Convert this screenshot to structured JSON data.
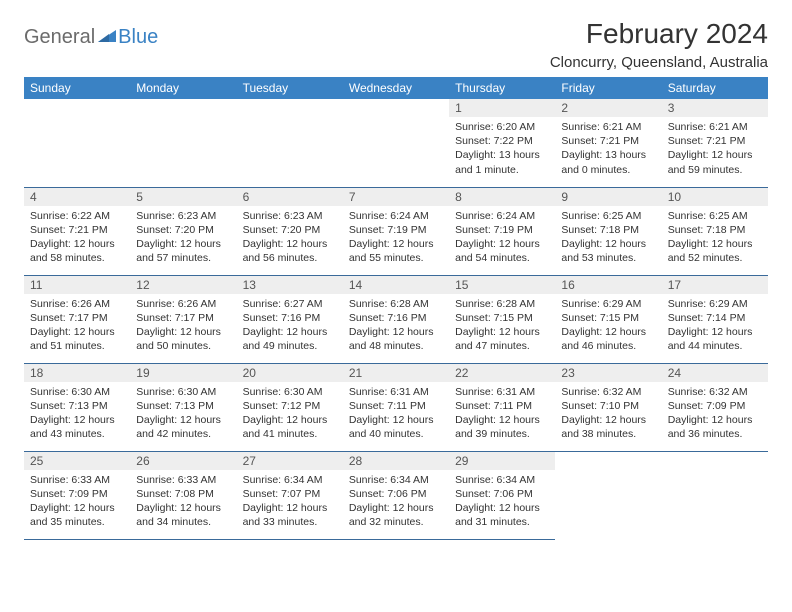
{
  "logo": {
    "general": "General",
    "blue": "Blue"
  },
  "title": "February 2024",
  "location": "Cloncurry, Queensland, Australia",
  "colors": {
    "header_bg": "#3a82c4",
    "header_text": "#ffffff",
    "daynum_bg": "#eeeeee",
    "border": "#3a6a9a",
    "text": "#333333",
    "logo_gray": "#6b6b6b",
    "logo_blue": "#3a82c4",
    "page_bg": "#ffffff"
  },
  "day_headers": [
    "Sunday",
    "Monday",
    "Tuesday",
    "Wednesday",
    "Thursday",
    "Friday",
    "Saturday"
  ],
  "weeks": [
    [
      null,
      null,
      null,
      null,
      {
        "n": "1",
        "sunrise": "6:20 AM",
        "sunset": "7:22 PM",
        "daylight": "13 hours and 1 minute."
      },
      {
        "n": "2",
        "sunrise": "6:21 AM",
        "sunset": "7:21 PM",
        "daylight": "13 hours and 0 minutes."
      },
      {
        "n": "3",
        "sunrise": "6:21 AM",
        "sunset": "7:21 PM",
        "daylight": "12 hours and 59 minutes."
      }
    ],
    [
      {
        "n": "4",
        "sunrise": "6:22 AM",
        "sunset": "7:21 PM",
        "daylight": "12 hours and 58 minutes."
      },
      {
        "n": "5",
        "sunrise": "6:23 AM",
        "sunset": "7:20 PM",
        "daylight": "12 hours and 57 minutes."
      },
      {
        "n": "6",
        "sunrise": "6:23 AM",
        "sunset": "7:20 PM",
        "daylight": "12 hours and 56 minutes."
      },
      {
        "n": "7",
        "sunrise": "6:24 AM",
        "sunset": "7:19 PM",
        "daylight": "12 hours and 55 minutes."
      },
      {
        "n": "8",
        "sunrise": "6:24 AM",
        "sunset": "7:19 PM",
        "daylight": "12 hours and 54 minutes."
      },
      {
        "n": "9",
        "sunrise": "6:25 AM",
        "sunset": "7:18 PM",
        "daylight": "12 hours and 53 minutes."
      },
      {
        "n": "10",
        "sunrise": "6:25 AM",
        "sunset": "7:18 PM",
        "daylight": "12 hours and 52 minutes."
      }
    ],
    [
      {
        "n": "11",
        "sunrise": "6:26 AM",
        "sunset": "7:17 PM",
        "daylight": "12 hours and 51 minutes."
      },
      {
        "n": "12",
        "sunrise": "6:26 AM",
        "sunset": "7:17 PM",
        "daylight": "12 hours and 50 minutes."
      },
      {
        "n": "13",
        "sunrise": "6:27 AM",
        "sunset": "7:16 PM",
        "daylight": "12 hours and 49 minutes."
      },
      {
        "n": "14",
        "sunrise": "6:28 AM",
        "sunset": "7:16 PM",
        "daylight": "12 hours and 48 minutes."
      },
      {
        "n": "15",
        "sunrise": "6:28 AM",
        "sunset": "7:15 PM",
        "daylight": "12 hours and 47 minutes."
      },
      {
        "n": "16",
        "sunrise": "6:29 AM",
        "sunset": "7:15 PM",
        "daylight": "12 hours and 46 minutes."
      },
      {
        "n": "17",
        "sunrise": "6:29 AM",
        "sunset": "7:14 PM",
        "daylight": "12 hours and 44 minutes."
      }
    ],
    [
      {
        "n": "18",
        "sunrise": "6:30 AM",
        "sunset": "7:13 PM",
        "daylight": "12 hours and 43 minutes."
      },
      {
        "n": "19",
        "sunrise": "6:30 AM",
        "sunset": "7:13 PM",
        "daylight": "12 hours and 42 minutes."
      },
      {
        "n": "20",
        "sunrise": "6:30 AM",
        "sunset": "7:12 PM",
        "daylight": "12 hours and 41 minutes."
      },
      {
        "n": "21",
        "sunrise": "6:31 AM",
        "sunset": "7:11 PM",
        "daylight": "12 hours and 40 minutes."
      },
      {
        "n": "22",
        "sunrise": "6:31 AM",
        "sunset": "7:11 PM",
        "daylight": "12 hours and 39 minutes."
      },
      {
        "n": "23",
        "sunrise": "6:32 AM",
        "sunset": "7:10 PM",
        "daylight": "12 hours and 38 minutes."
      },
      {
        "n": "24",
        "sunrise": "6:32 AM",
        "sunset": "7:09 PM",
        "daylight": "12 hours and 36 minutes."
      }
    ],
    [
      {
        "n": "25",
        "sunrise": "6:33 AM",
        "sunset": "7:09 PM",
        "daylight": "12 hours and 35 minutes."
      },
      {
        "n": "26",
        "sunrise": "6:33 AM",
        "sunset": "7:08 PM",
        "daylight": "12 hours and 34 minutes."
      },
      {
        "n": "27",
        "sunrise": "6:34 AM",
        "sunset": "7:07 PM",
        "daylight": "12 hours and 33 minutes."
      },
      {
        "n": "28",
        "sunrise": "6:34 AM",
        "sunset": "7:06 PM",
        "daylight": "12 hours and 32 minutes."
      },
      {
        "n": "29",
        "sunrise": "6:34 AM",
        "sunset": "7:06 PM",
        "daylight": "12 hours and 31 minutes."
      },
      null,
      null
    ]
  ],
  "labels": {
    "sunrise": "Sunrise:",
    "sunset": "Sunset:",
    "daylight": "Daylight:"
  }
}
